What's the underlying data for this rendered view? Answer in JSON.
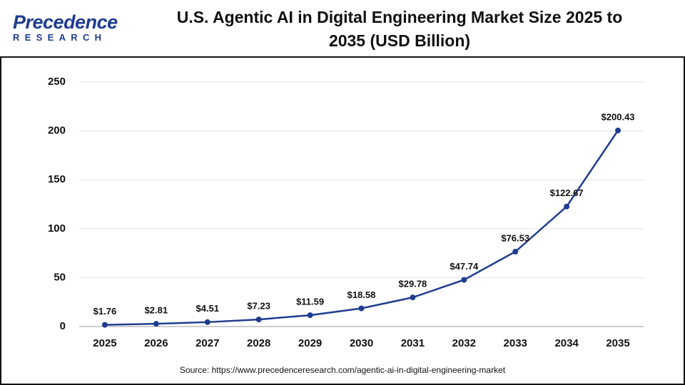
{
  "brand": {
    "name": "Precedence",
    "tagline": "RESEARCH"
  },
  "source": "Source: https://www.precedenceresearch.com/agentic-ai-in-digital-engineering-market",
  "chart_data": {
    "type": "line",
    "title": "U.S. Agentic AI in Digital Engineering Market Size 2025 to 2035 (USD Billion)",
    "categories": [
      "2025",
      "2026",
      "2027",
      "2028",
      "2029",
      "2030",
      "2031",
      "2032",
      "2033",
      "2034",
      "2035"
    ],
    "values": [
      1.76,
      2.81,
      4.51,
      7.23,
      11.59,
      18.58,
      29.78,
      47.74,
      76.53,
      122.67,
      200.43
    ],
    "value_labels": [
      "$1.76",
      "$2.81",
      "$4.51",
      "$7.23",
      "$11.59",
      "$18.58",
      "$29.78",
      "$47.74",
      "$76.53",
      "$122.67",
      "$200.43"
    ],
    "color": "#1f3c8f",
    "ylim": [
      0,
      250
    ],
    "yticks": [
      0,
      50,
      100,
      150,
      200,
      250
    ],
    "grid": true
  }
}
